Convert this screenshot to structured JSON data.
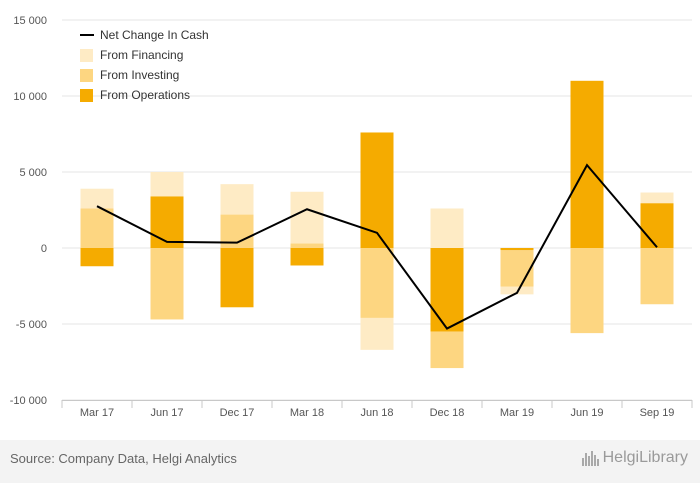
{
  "chart_data": {
    "type": "bar",
    "categories": [
      "Mar 17",
      "Jun 17",
      "Dec 17",
      "Mar 18",
      "Jun 18",
      "Dec 18",
      "Mar 19",
      "Jun 19",
      "Sep 19"
    ],
    "series": [
      {
        "name": "From Operations",
        "color": "#f5ab00",
        "values": [
          -1200,
          3400,
          -3900,
          -1150,
          7600,
          -5500,
          -150,
          11000,
          2950
        ]
      },
      {
        "name": "From Investing",
        "color": "#fdd681",
        "values": [
          2600,
          -4700,
          2200,
          300,
          -4600,
          -2400,
          -2400,
          -5600,
          -3700
        ]
      },
      {
        "name": "From Financing",
        "color": "#feebc5",
        "values": [
          1300,
          1600,
          2000,
          3400,
          -2100,
          2600,
          -500,
          0,
          700
        ]
      },
      {
        "name": "Net Change In Cash",
        "color": "#000000",
        "type": "line",
        "values": [
          2750,
          400,
          350,
          2550,
          1000,
          -5300,
          -2950,
          5450,
          50
        ]
      }
    ],
    "legend": [
      "Net Change In Cash",
      "From Financing",
      "From Investing",
      "From Operations"
    ],
    "ylim": [
      -10000,
      15000
    ],
    "yticks": [
      -10000,
      -5000,
      0,
      5000,
      10000,
      15000
    ],
    "ytick_labels": [
      "-10 000",
      "-5 000",
      "0",
      "5 000",
      "10 000",
      "15 000"
    ],
    "title": "",
    "xlabel": "",
    "ylabel": ""
  },
  "source": "Source: Company Data, Helgi Analytics",
  "logo_text": "HelgiLibrary"
}
